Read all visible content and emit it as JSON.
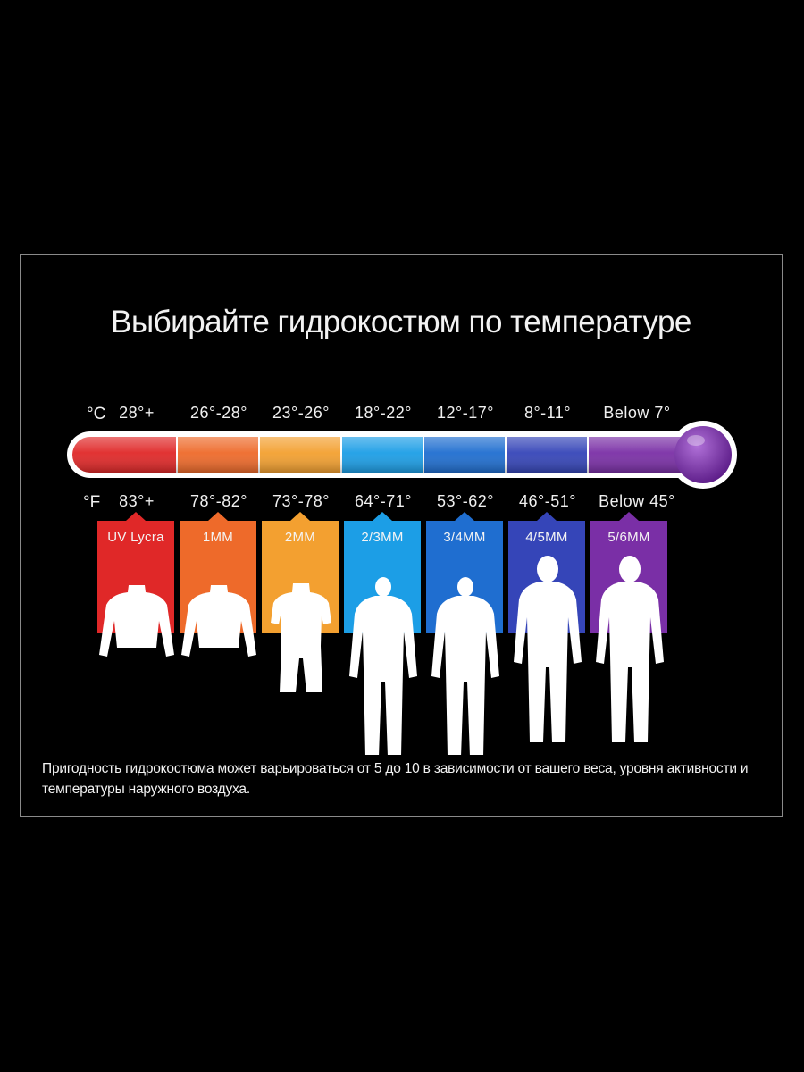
{
  "title": "Выбирайте гидрокостюм по температуре",
  "celsius_unit": "°C",
  "fahrenheit_unit": "°F",
  "ranges": [
    {
      "celsius": "28°+",
      "fahrenheit": "83°+",
      "suit": "UV Lycra",
      "color": "#e02828",
      "figure": "short-top"
    },
    {
      "celsius": "26°-28°",
      "fahrenheit": "78°-82°",
      "suit": "1MM",
      "color": "#ee6a2a",
      "figure": "long-top"
    },
    {
      "celsius": "23°-26°",
      "fahrenheit": "73°-78°",
      "suit": "2MM",
      "color": "#f3a030",
      "figure": "shorty"
    },
    {
      "celsius": "18°-22°",
      "fahrenheit": "64°-71°",
      "suit": "2/3MM",
      "color": "#1c9ee6",
      "figure": "full-suit"
    },
    {
      "celsius": "12°-17°",
      "fahrenheit": "53°-62°",
      "suit": "3/4MM",
      "color": "#1f6ed0",
      "figure": "full-suit"
    },
    {
      "celsius": "8°-11°",
      "fahrenheit": "46°-51°",
      "suit": "4/5MM",
      "color": "#3545b8",
      "figure": "hooded-suit"
    },
    {
      "celsius": "Below 7°",
      "fahrenheit": "Below 45°",
      "suit": "5/6MM",
      "color": "#7a2fa6",
      "figure": "hooded-suit"
    }
  ],
  "note": "Пригодность гидрокостюма может варьироваться от 5 до 10 в зависимости от вашего веса, уровня активности и температуры наружного воздуха."
}
